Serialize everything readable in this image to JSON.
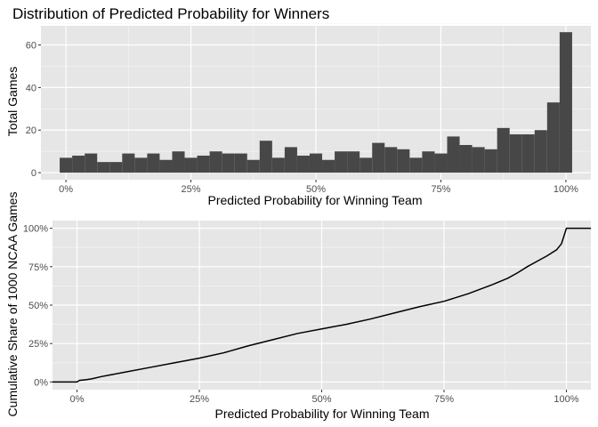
{
  "chart_data": [
    {
      "type": "bar",
      "title": "Distribution of Predicted Probability for Winners",
      "xlabel": "Predicted Probability for Winning Team",
      "ylabel": "Total Games",
      "xlim": [
        -0.05,
        1.05
      ],
      "ylim": [
        -3.3,
        69
      ],
      "bin_width": 0.025,
      "bin_centers": [
        0,
        0.025,
        0.05,
        0.075,
        0.1,
        0.125,
        0.15,
        0.175,
        0.2,
        0.225,
        0.25,
        0.275,
        0.3,
        0.325,
        0.35,
        0.375,
        0.4,
        0.425,
        0.45,
        0.475,
        0.5,
        0.525,
        0.55,
        0.575,
        0.6,
        0.625,
        0.65,
        0.675,
        0.7,
        0.725,
        0.75,
        0.775,
        0.8,
        0.825,
        0.85,
        0.875,
        0.9,
        0.925,
        0.95,
        0.975,
        1.0
      ],
      "values": [
        7,
        8,
        9,
        5,
        5,
        9,
        7,
        9,
        6,
        10,
        7,
        8,
        10,
        9,
        9,
        6,
        15,
        7,
        12,
        8,
        9,
        6,
        10,
        10,
        7,
        14,
        12,
        11,
        7,
        10,
        9,
        17,
        13,
        12,
        11,
        21,
        18,
        18,
        20,
        33,
        66
      ],
      "xticks": [
        0,
        0.25,
        0.5,
        0.75,
        1.0
      ],
      "xtick_labels": [
        "0%",
        "25%",
        "50%",
        "75%",
        "100%"
      ],
      "yticks": [
        0,
        20,
        40,
        60
      ],
      "ytick_labels": [
        "0",
        "20",
        "40",
        "60"
      ],
      "bar_color": "#474747",
      "panel_color": "#e6e6e6",
      "grid": true
    },
    {
      "type": "line",
      "xlabel": "Predicted Probability for Winning Team",
      "ylabel": "Cumulative Share of 1000 NCAA Games",
      "xlim": [
        -0.05,
        1.05
      ],
      "ylim": [
        -0.05,
        1.05
      ],
      "x": [
        -0.05,
        0.0,
        0.005,
        0.02,
        0.03,
        0.05,
        0.1,
        0.15,
        0.2,
        0.25,
        0.3,
        0.35,
        0.4,
        0.45,
        0.5,
        0.55,
        0.6,
        0.65,
        0.7,
        0.75,
        0.8,
        0.85,
        0.88,
        0.9,
        0.92,
        0.94,
        0.96,
        0.98,
        0.99,
        0.995,
        1.0,
        1.05
      ],
      "y": [
        0.0,
        0.0,
        0.01,
        0.015,
        0.02,
        0.035,
        0.065,
        0.095,
        0.125,
        0.155,
        0.19,
        0.235,
        0.275,
        0.315,
        0.345,
        0.375,
        0.41,
        0.45,
        0.49,
        0.525,
        0.575,
        0.635,
        0.675,
        0.71,
        0.75,
        0.785,
        0.82,
        0.86,
        0.9,
        0.95,
        1.0,
        1.0
      ],
      "xticks": [
        0,
        0.25,
        0.5,
        0.75,
        1.0
      ],
      "xtick_labels": [
        "0%",
        "25%",
        "50%",
        "75%",
        "100%"
      ],
      "yticks": [
        0,
        0.25,
        0.5,
        0.75,
        1.0
      ],
      "ytick_labels": [
        "0%",
        "25%",
        "50%",
        "75%",
        "100%"
      ],
      "line_color": "#000000",
      "panel_color": "#e6e6e6",
      "grid": true
    }
  ]
}
